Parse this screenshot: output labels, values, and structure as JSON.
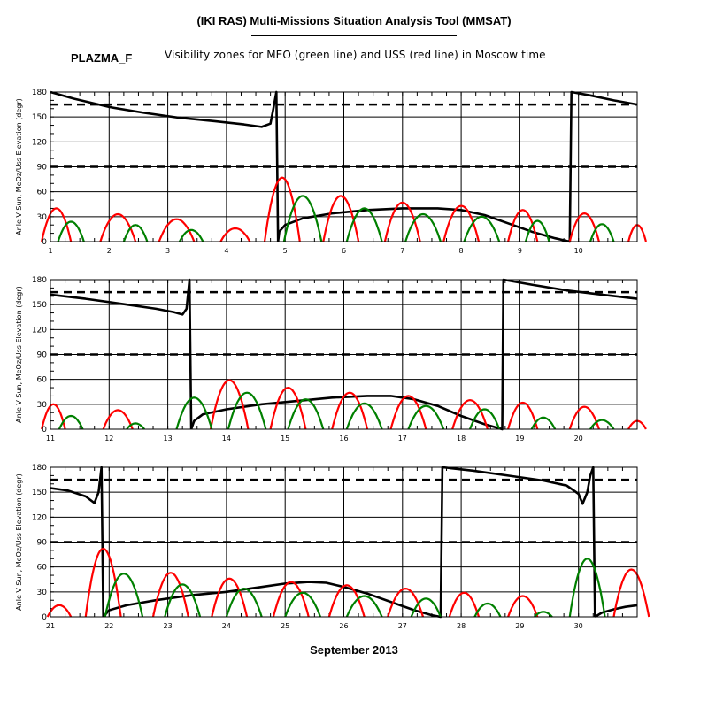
{
  "header": {
    "title": "(IKI RAS) Multi-Missions Situation Analysis Tool (MMSAT)",
    "satellite": "PLAZMA_F",
    "subtitle": "Visibility zones for MEO (green line) and USS (red line) in Moscow time"
  },
  "footer": {
    "month": "September 2013"
  },
  "colors": {
    "meo": "#008000",
    "uss": "#ff0000",
    "sun": "#000000"
  },
  "chart_data": [
    {
      "type": "line",
      "ylabel": "Anle V Sun, MeOz/Uss Elevation (degr)",
      "xlim": [
        1,
        11
      ],
      "ylim": [
        0,
        180
      ],
      "yticks": [
        0,
        30,
        60,
        90,
        120,
        150,
        180
      ],
      "xticks": [
        1,
        2,
        3,
        4,
        5,
        6,
        7,
        8,
        9,
        10
      ],
      "xtick_labels": [
        "1",
        "2",
        "3",
        "4",
        "5",
        "6",
        "7",
        "8",
        "9",
        "10"
      ],
      "dashed_levels": [
        90,
        165
      ],
      "series": [
        {
          "color": "sun",
          "points": [
            [
              1.0,
              180
            ],
            [
              1.4,
              172
            ],
            [
              2.0,
              162
            ],
            [
              2.6,
              155
            ],
            [
              3.2,
              149
            ],
            [
              3.8,
              145
            ],
            [
              4.3,
              141
            ],
            [
              4.6,
              138
            ],
            [
              4.75,
              142
            ],
            [
              4.8,
              160
            ],
            [
              4.85,
              180
            ],
            [
              4.88,
              0
            ]
          ]
        },
        {
          "color": "sun",
          "points": [
            [
              4.88,
              0
            ],
            [
              4.9,
              12
            ],
            [
              5.0,
              20
            ],
            [
              5.3,
              28
            ],
            [
              5.8,
              34
            ],
            [
              6.4,
              38
            ],
            [
              7.0,
              40
            ],
            [
              7.6,
              40
            ],
            [
              8.0,
              38
            ],
            [
              8.4,
              32
            ],
            [
              8.8,
              22
            ],
            [
              9.2,
              12
            ],
            [
              9.6,
              4
            ],
            [
              9.85,
              0
            ],
            [
              9.88,
              180
            ],
            [
              10.2,
              176
            ],
            [
              10.6,
              170
            ],
            [
              11.0,
              165
            ]
          ]
        },
        {
          "color": "uss",
          "peaks": [
            [
              1.1,
              40,
              0.25
            ],
            [
              2.15,
              33,
              0.3
            ],
            [
              3.15,
              27,
              0.3
            ],
            [
              4.15,
              16,
              0.25
            ],
            [
              4.95,
              77,
              0.3
            ],
            [
              5.95,
              55,
              0.3
            ],
            [
              7.0,
              47,
              0.3
            ],
            [
              8.0,
              43,
              0.3
            ],
            [
              9.05,
              38,
              0.25
            ],
            [
              10.1,
              34,
              0.25
            ],
            [
              11.0,
              20,
              0.15
            ]
          ]
        },
        {
          "color": "meo",
          "peaks": [
            [
              1.35,
              24,
              0.22
            ],
            [
              2.45,
              20,
              0.2
            ],
            [
              3.4,
              14,
              0.2
            ],
            [
              5.3,
              55,
              0.32
            ],
            [
              6.35,
              40,
              0.3
            ],
            [
              7.35,
              33,
              0.3
            ],
            [
              8.35,
              30,
              0.3
            ],
            [
              9.3,
              25,
              0.2
            ],
            [
              10.4,
              21,
              0.2
            ]
          ]
        }
      ]
    },
    {
      "type": "line",
      "ylabel": "Anle V Sun, MeOz/Uss Elevation (degr)",
      "xlim": [
        11,
        21
      ],
      "ylim": [
        0,
        180
      ],
      "yticks": [
        0,
        30,
        60,
        90,
        120,
        150,
        180
      ],
      "xticks": [
        11,
        12,
        13,
        14,
        15,
        16,
        17,
        18,
        19,
        20
      ],
      "xtick_labels": [
        "11",
        "12",
        "13",
        "14",
        "15",
        "16",
        "17",
        "18",
        "19",
        "20"
      ],
      "dashed_levels": [
        90,
        165
      ],
      "series": [
        {
          "color": "sun",
          "points": [
            [
              11.0,
              162
            ],
            [
              11.6,
              157
            ],
            [
              12.2,
              151
            ],
            [
              12.8,
              145
            ],
            [
              13.1,
              141
            ],
            [
              13.25,
              138
            ],
            [
              13.32,
              145
            ],
            [
              13.37,
              180
            ],
            [
              13.4,
              0
            ]
          ]
        },
        {
          "color": "sun",
          "points": [
            [
              13.4,
              0
            ],
            [
              13.45,
              10
            ],
            [
              13.6,
              18
            ],
            [
              14.0,
              24
            ],
            [
              14.6,
              30
            ],
            [
              15.2,
              34
            ],
            [
              15.8,
              38
            ],
            [
              16.4,
              40
            ],
            [
              16.8,
              40
            ],
            [
              17.2,
              36
            ],
            [
              17.6,
              28
            ],
            [
              18.0,
              16
            ],
            [
              18.4,
              6
            ],
            [
              18.7,
              0
            ],
            [
              18.72,
              180
            ],
            [
              19.2,
              174
            ],
            [
              19.8,
              167
            ],
            [
              20.4,
              162
            ],
            [
              21.0,
              157
            ]
          ]
        },
        {
          "color": "uss",
          "peaks": [
            [
              11.05,
              30,
              0.2
            ],
            [
              12.15,
              23,
              0.25
            ],
            [
              14.05,
              59,
              0.32
            ],
            [
              15.05,
              50,
              0.3
            ],
            [
              16.1,
              44,
              0.3
            ],
            [
              17.1,
              40,
              0.3
            ],
            [
              18.15,
              35,
              0.3
            ],
            [
              19.05,
              32,
              0.25
            ],
            [
              20.1,
              27,
              0.25
            ],
            [
              21.0,
              10,
              0.15
            ]
          ]
        },
        {
          "color": "meo",
          "peaks": [
            [
              11.35,
              16,
              0.2
            ],
            [
              12.45,
              7,
              0.15
            ],
            [
              13.45,
              38,
              0.3
            ],
            [
              14.35,
              44,
              0.32
            ],
            [
              15.35,
              36,
              0.3
            ],
            [
              16.35,
              31,
              0.3
            ],
            [
              17.4,
              28,
              0.3
            ],
            [
              18.4,
              24,
              0.25
            ],
            [
              19.4,
              14,
              0.2
            ],
            [
              20.4,
              11,
              0.2
            ]
          ]
        }
      ]
    },
    {
      "type": "line",
      "ylabel": "Anle V Sun, MeOz/Uss Elevation (degr)",
      "xlim": [
        21,
        31
      ],
      "ylim": [
        0,
        180
      ],
      "yticks": [
        0,
        30,
        60,
        90,
        120,
        150,
        180
      ],
      "xticks": [
        21,
        22,
        23,
        24,
        25,
        26,
        27,
        28,
        29,
        30
      ],
      "xtick_labels": [
        "21",
        "22",
        "23",
        "24",
        "25",
        "26",
        "27",
        "28",
        "29",
        "30"
      ],
      "dashed_levels": [
        90,
        165
      ],
      "series": [
        {
          "color": "sun",
          "points": [
            [
              21.0,
              155
            ],
            [
              21.3,
              152
            ],
            [
              21.6,
              145
            ],
            [
              21.75,
              137
            ],
            [
              21.82,
              150
            ],
            [
              21.87,
              180
            ],
            [
              21.9,
              0
            ]
          ]
        },
        {
          "color": "sun",
          "points": [
            [
              21.9,
              0
            ],
            [
              22.0,
              8
            ],
            [
              22.3,
              14
            ],
            [
              22.8,
              20
            ],
            [
              23.4,
              26
            ],
            [
              24.0,
              30
            ],
            [
              24.6,
              36
            ],
            [
              25.0,
              40
            ],
            [
              25.4,
              42
            ],
            [
              25.7,
              41
            ],
            [
              26.0,
              36
            ],
            [
              26.4,
              28
            ],
            [
              26.8,
              18
            ],
            [
              27.2,
              8
            ],
            [
              27.5,
              2
            ],
            [
              27.65,
              0
            ],
            [
              27.68,
              180
            ],
            [
              28.2,
              176
            ],
            [
              28.8,
              170
            ],
            [
              29.4,
              164
            ],
            [
              29.8,
              158
            ],
            [
              30.0,
              148
            ],
            [
              30.07,
              136
            ],
            [
              30.15,
              150
            ],
            [
              30.2,
              170
            ],
            [
              30.25,
              180
            ],
            [
              30.28,
              0
            ]
          ]
        },
        {
          "color": "sun",
          "points": [
            [
              30.28,
              0
            ],
            [
              30.4,
              5
            ],
            [
              30.6,
              9
            ],
            [
              30.8,
              12
            ],
            [
              31.0,
              14
            ]
          ]
        },
        {
          "color": "uss",
          "peaks": [
            [
              21.15,
              14,
              0.2
            ],
            [
              21.9,
              82,
              0.3
            ],
            [
              23.05,
              53,
              0.3
            ],
            [
              24.05,
              46,
              0.3
            ],
            [
              25.1,
              42,
              0.3
            ],
            [
              26.05,
              38,
              0.3
            ],
            [
              27.05,
              34,
              0.3
            ],
            [
              28.05,
              29,
              0.25
            ],
            [
              29.05,
              25,
              0.25
            ],
            [
              30.9,
              57,
              0.3
            ]
          ]
        },
        {
          "color": "meo",
          "peaks": [
            [
              22.25,
              52,
              0.32
            ],
            [
              23.25,
              39,
              0.3
            ],
            [
              24.3,
              34,
              0.3
            ],
            [
              25.3,
              29,
              0.3
            ],
            [
              26.35,
              25,
              0.3
            ],
            [
              27.4,
              22,
              0.25
            ],
            [
              28.45,
              16,
              0.22
            ],
            [
              29.4,
              6,
              0.15
            ],
            [
              30.15,
              70,
              0.3
            ]
          ]
        }
      ]
    }
  ]
}
